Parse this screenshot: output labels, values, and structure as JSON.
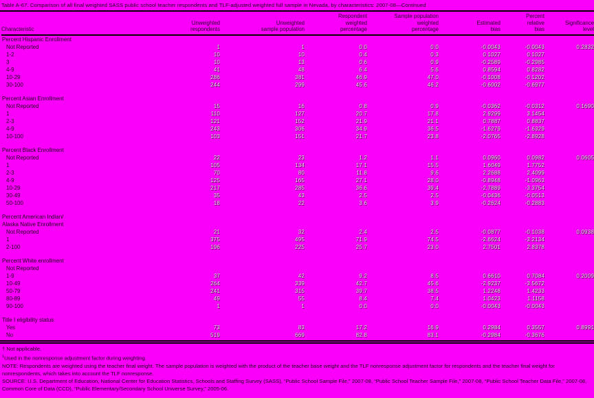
{
  "title": "Table A-67. Comparison of all final weighted SASS public school teacher respondents and TLF-adjusted weighted full sample in Nevada, by characteristics: 2007-08—Continued",
  "colors": {
    "background": "#fa00fa",
    "text": "#1c001c",
    "rule": "#000000"
  },
  "table": {
    "columns": [
      "Characteristic",
      "Unweighted\nrespondents",
      "Unweighted\nsample population",
      "Respondent\nweighted\npercentage",
      "Sample population\nweighted\npercentage",
      "Estimated\nbias",
      "Percent\nrelative\nbias",
      "Significance\nlevel"
    ],
    "sections": [
      {
        "heading": "Percent Hispanic Enrollment",
        "rows": [
          {
            "label": "Not Reported",
            "cells": [
              "1",
              "1",
              "0.0",
              "0.0",
              "-0.0043",
              "-0.0043",
              "0.2832"
            ]
          },
          {
            "label": "1-2",
            "cells": [
              "10",
              "10",
              "0.4",
              "0.3",
              "0.1027",
              "0.1027",
              ""
            ]
          },
          {
            "label": "3",
            "cells": [
              "10",
              "13",
              "0.6",
              "0.9",
              "-0.2589",
              "-0.2985",
              ""
            ]
          },
          {
            "label": "4-9",
            "cells": [
              "41",
              "48",
              "6.4",
              "5.6",
              "0.8594",
              "0.8282",
              ""
            ]
          },
          {
            "label": "10-29",
            "cells": [
              "286",
              "381",
              "46.9",
              "47.0",
              "-0.1008",
              "-0.1202",
              ""
            ]
          },
          {
            "label": "30-100",
            "cells": [
              "244",
              "299",
              "45.6",
              "46.2",
              "-0.6002",
              "-0.6977",
              ""
            ]
          }
        ]
      },
      {
        "heading": "Percent Asian Enrollment",
        "rows": [
          {
            "label": "Not Reported",
            "cells": [
              "15",
              "16",
              "0.8",
              "0.9",
              "-0.0362",
              "-0.0312",
              "0.1690"
            ]
          },
          {
            "label": "1",
            "cells": [
              "110",
              "127",
              "20.7",
              "17.8",
              "2.9299",
              "3.1454",
              ""
            ]
          },
          {
            "label": "2-3",
            "cells": [
              "121",
              "152",
              "21.9",
              "21.1",
              "0.7887",
              "0.8837",
              ""
            ]
          },
          {
            "label": "4-9",
            "cells": [
              "243",
              "306",
              "34.9",
              "36.5",
              "-1.6279",
              "-1.6329",
              ""
            ]
          },
          {
            "label": "10-100",
            "cells": [
              "103",
              "151",
              "21.7",
              "23.8",
              "-2.0765",
              "-2.8928",
              ""
            ]
          }
        ]
      },
      {
        "heading": "Percent Black Enrollment",
        "rows": [
          {
            "label": "Not Reported",
            "cells": [
              "22",
              "23",
              "1.2",
              "1.1",
              "0.0960",
              "0.0982",
              "0.0605"
            ]
          },
          {
            "label": "1",
            "cells": [
              "105",
              "134",
              "17.1",
              "15.5",
              "1.6049",
              "1.7752",
              ""
            ]
          },
          {
            "label": "2-3",
            "cells": [
              "70",
              "80",
              "11.8",
              "9.6",
              "2.2688",
              "2.4099",
              ""
            ]
          },
          {
            "label": "4-9",
            "cells": [
              "125",
              "165",
              "27.1",
              "28.0",
              "-0.8948",
              "-1.0963",
              ""
            ]
          },
          {
            "label": "10-29",
            "cells": [
              "217",
              "285",
              "36.6",
              "39.4",
              "-2.7889",
              "-3.3754",
              ""
            ]
          },
          {
            "label": "30-49",
            "cells": [
              "35",
              "43",
              "2.5",
              "2.5",
              "-0.0436",
              "-0.0513",
              ""
            ]
          },
          {
            "label": "50-100",
            "cells": [
              "18",
              "22",
              "3.6",
              "3.9",
              "-0.2624",
              "-0.2883",
              ""
            ]
          }
        ]
      },
      {
        "heading": "Percent American Indian/\nAlaska Native Enrollment",
        "rows": [
          {
            "label": "Not Reported",
            "cells": [
              "21",
              "32",
              "2.4",
              "2.5",
              "-0.0877",
              "-0.1038",
              "0.0938"
            ]
          },
          {
            "label": "1",
            "cells": [
              "375",
              "495",
              "71.9",
              "74.5",
              "-2.6624",
              "-3.2134",
              ""
            ]
          },
          {
            "label": "2-100",
            "cells": [
              "196",
              "225",
              "25.7",
              "23.0",
              "2.7501",
              "2.8378",
              ""
            ]
          }
        ]
      },
      {
        "heading": "Percent White enrollment",
        "rows": [
          {
            "label": "Not Reported",
            "cells": [
              "",
              "",
              "",
              "",
              "",
              "",
              ""
            ]
          },
          {
            "label": "1-9",
            "cells": [
              "37",
              "42",
              "9.2",
              "8.5",
              "0.6610",
              "0.7084",
              "0.2009"
            ]
          },
          {
            "label": "10-49",
            "cells": [
              "264",
              "339",
              "42.7",
              "45.6",
              "-2.9237",
              "-3.5672",
              ""
            ]
          },
          {
            "label": "50-79",
            "cells": [
              "241",
              "315",
              "39.7",
              "38.5",
              "1.2248",
              "1.4233",
              ""
            ]
          },
          {
            "label": "80-89",
            "cells": [
              "49",
              "55",
              "8.4",
              "7.4",
              "1.0423",
              "1.1158",
              ""
            ]
          },
          {
            "label": "90-100",
            "cells": [
              "1",
              "1",
              "0.0",
              "0.0",
              "-0.0043",
              "-0.0043",
              ""
            ]
          }
        ]
      },
      {
        "heading": "Title I eligibility status",
        "rows": [
          {
            "label": "Yes",
            "cells": [
              "73",
              "83",
              "17.2",
              "16.9",
              "0.2984",
              "0.3557",
              "0.8991"
            ]
          },
          {
            "label": "No",
            "cells": [
              "519",
              "669",
              "82.8",
              "83.1",
              "-0.2984",
              "-0.3676",
              ""
            ]
          }
        ]
      }
    ]
  },
  "footnotes": {
    "dagger": "† Not applicable.",
    "note1_marker": "1",
    "note1_text": "Used in the nonresponse adjustment factor during weighting.",
    "note": "NOTE: Respondents are weighted using the teacher final weight. The sample population is weighted with the product of the teacher base weight and the TLF nonresponse adjustment factor for respondents and the teacher final weight for nonrespondents, which takes into account the TLF nonresponse.",
    "source": "SOURCE: U.S. Department of Education, National Center for Education Statistics, Schools and Staffing Survey (SASS), “Public School Sample File,” 2007-08, “Public School Teacher Sample File,” 2007-08, “Public School Teacher Data File,” 2007-08, Common Core of Data (CCD), “Public Elementary/Secondary School Universe Survey,” 2005-06."
  }
}
